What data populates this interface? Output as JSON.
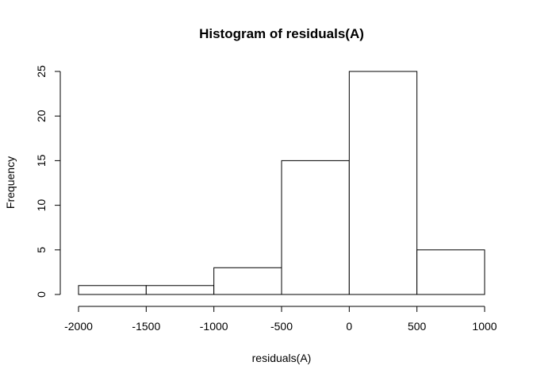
{
  "chart_data": {
    "type": "bar",
    "title": "Histogram of residuals(A)",
    "xlabel": "residuals(A)",
    "ylabel": "Frequency",
    "bins": [
      {
        "start": -2000,
        "end": -1500,
        "count": 1
      },
      {
        "start": -1500,
        "end": -1000,
        "count": 1
      },
      {
        "start": -1000,
        "end": -500,
        "count": 3
      },
      {
        "start": -500,
        "end": 0,
        "count": 15
      },
      {
        "start": 0,
        "end": 500,
        "count": 25
      },
      {
        "start": 500,
        "end": 1000,
        "count": 5
      }
    ],
    "xlim": [
      -2000,
      1000
    ],
    "ylim": [
      0,
      25
    ],
    "x_ticks": [
      "-2000",
      "-1500",
      "-1000",
      "-500",
      "0",
      "500",
      "1000"
    ],
    "y_ticks": [
      "0",
      "5",
      "10",
      "15",
      "20",
      "25"
    ],
    "bar_fill": "#ffffff",
    "bar_stroke": "#000000",
    "grid": false
  }
}
